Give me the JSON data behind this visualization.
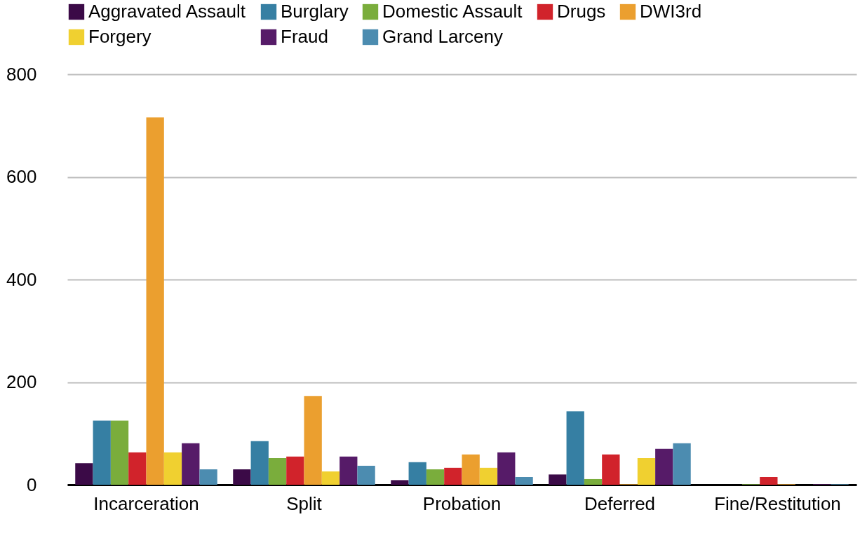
{
  "chart_data": {
    "type": "bar",
    "categories": [
      "Incarceration",
      "Split",
      "Probation",
      "Deferred",
      "Fine/Restitution"
    ],
    "series": [
      {
        "name": "Aggravated Assault",
        "color": "#3b0a47",
        "values": [
          42,
          30,
          9,
          20,
          0
        ]
      },
      {
        "name": "Burglary",
        "color": "#367fa3",
        "values": [
          125,
          85,
          44,
          143,
          0
        ]
      },
      {
        "name": "Domestic Assault",
        "color": "#7aad3c",
        "values": [
          125,
          52,
          30,
          11,
          1
        ]
      },
      {
        "name": "Drugs",
        "color": "#d1232b",
        "values": [
          63,
          55,
          33,
          59,
          15
        ]
      },
      {
        "name": "DWI3rd",
        "color": "#eb9f2f",
        "values": [
          716,
          173,
          59,
          1,
          1
        ]
      },
      {
        "name": "Forgery",
        "color": "#f0d030",
        "values": [
          63,
          26,
          33,
          52,
          0
        ]
      },
      {
        "name": "Fraud",
        "color": "#561b68",
        "values": [
          81,
          55,
          63,
          70,
          1
        ]
      },
      {
        "name": "Grand Larceny",
        "color": "#4c8cb0",
        "values": [
          30,
          37,
          15,
          81,
          1
        ]
      }
    ],
    "ylim": [
      0,
      800
    ],
    "yticks": [
      0,
      200,
      400,
      600,
      800
    ],
    "grid": "y",
    "legend": "top"
  }
}
